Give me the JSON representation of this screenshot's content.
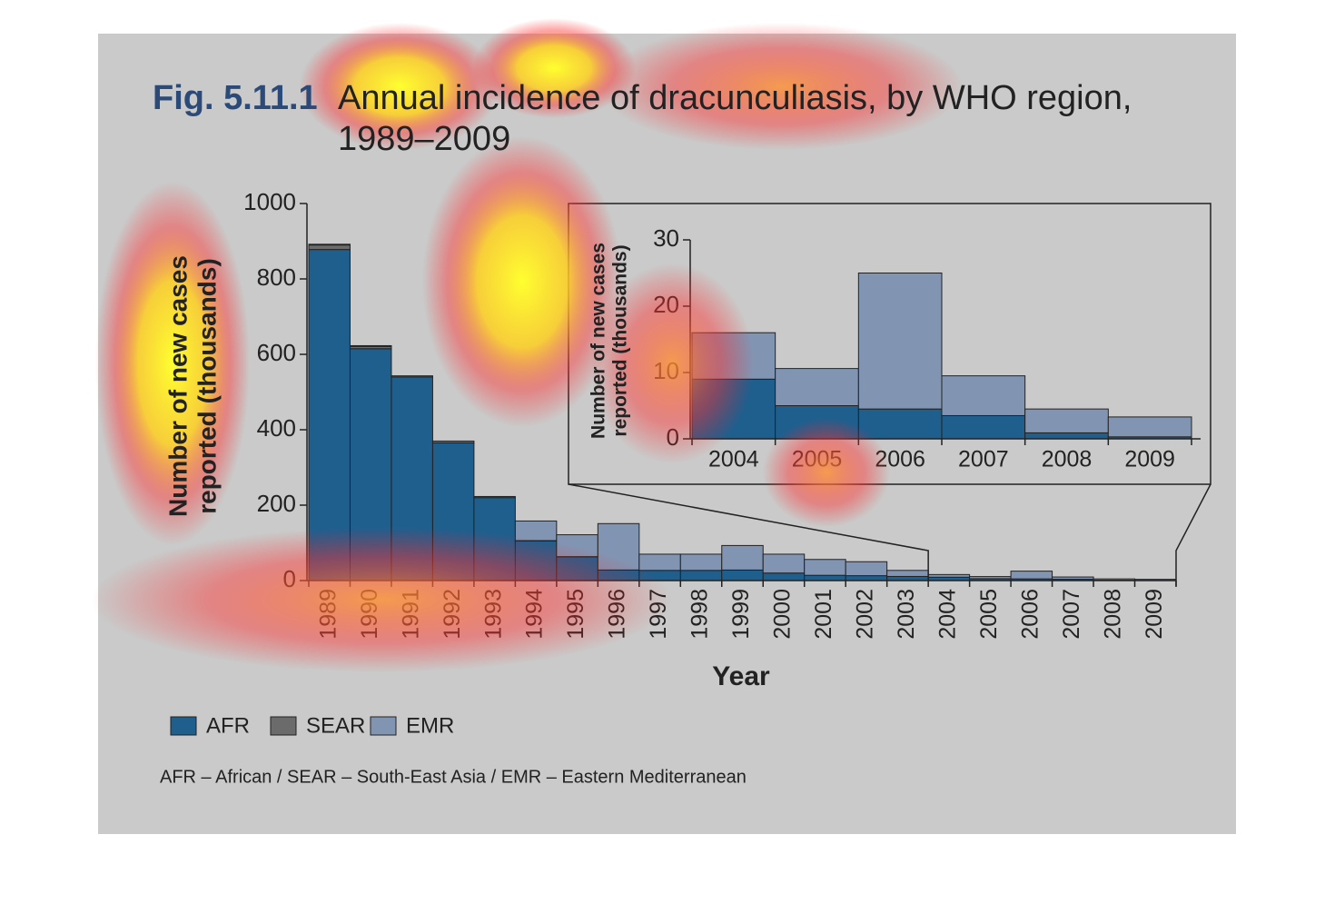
{
  "chart_data": {
    "type": "bar",
    "stacked": true,
    "title_label": "Fig. 5.11.1",
    "title": [
      "Annual incidence of dracunculiasis, by WHO region,",
      "1989–2009"
    ],
    "y_label": [
      "Number of new cases",
      "reported (thousands)"
    ],
    "x_label": "Year",
    "categories": [
      "1989",
      "1990",
      "1991",
      "1992",
      "1993",
      "1994",
      "1995",
      "1996",
      "1997",
      "1998",
      "1999",
      "2000",
      "2001",
      "2002",
      "2003",
      "2004",
      "2005",
      "2006",
      "2007",
      "2008",
      "2009"
    ],
    "series": [
      {
        "name": "AFR",
        "color": "#1f5f8e",
        "values": [
          878,
          615,
          540,
          365,
          220,
          105,
          63,
          28,
          27,
          27,
          28,
          20,
          14,
          13,
          11,
          9,
          5,
          4.5,
          3.5,
          0.9,
          0.3
        ]
      },
      {
        "name": "SEAR",
        "color": "#6b6b6b",
        "values": [
          12,
          6,
          3,
          5,
          3,
          1,
          0.5,
          0.1,
          0,
          0,
          0,
          0,
          0,
          0,
          0,
          0,
          0,
          0,
          0,
          0,
          0
        ]
      },
      {
        "name": "EMR",
        "color": "#8195b3",
        "values": [
          2,
          2,
          0,
          0,
          0,
          52,
          58,
          123,
          43,
          43,
          65,
          50,
          42,
          37,
          16,
          7,
          5.6,
          20.5,
          6,
          3.6,
          3
        ]
      }
    ],
    "ylim": [
      0,
      1000
    ],
    "yticks": [
      0,
      200,
      400,
      600,
      800,
      1000
    ],
    "inset": {
      "categories": [
        "2004",
        "2005",
        "2006",
        "2007",
        "2008",
        "2009"
      ],
      "ylim": [
        0,
        30
      ],
      "yticks": [
        0,
        10,
        20,
        30
      ]
    },
    "footnote": "AFR – African / SEAR – South-East Asia / EMR – Eastern Mediterranean"
  }
}
